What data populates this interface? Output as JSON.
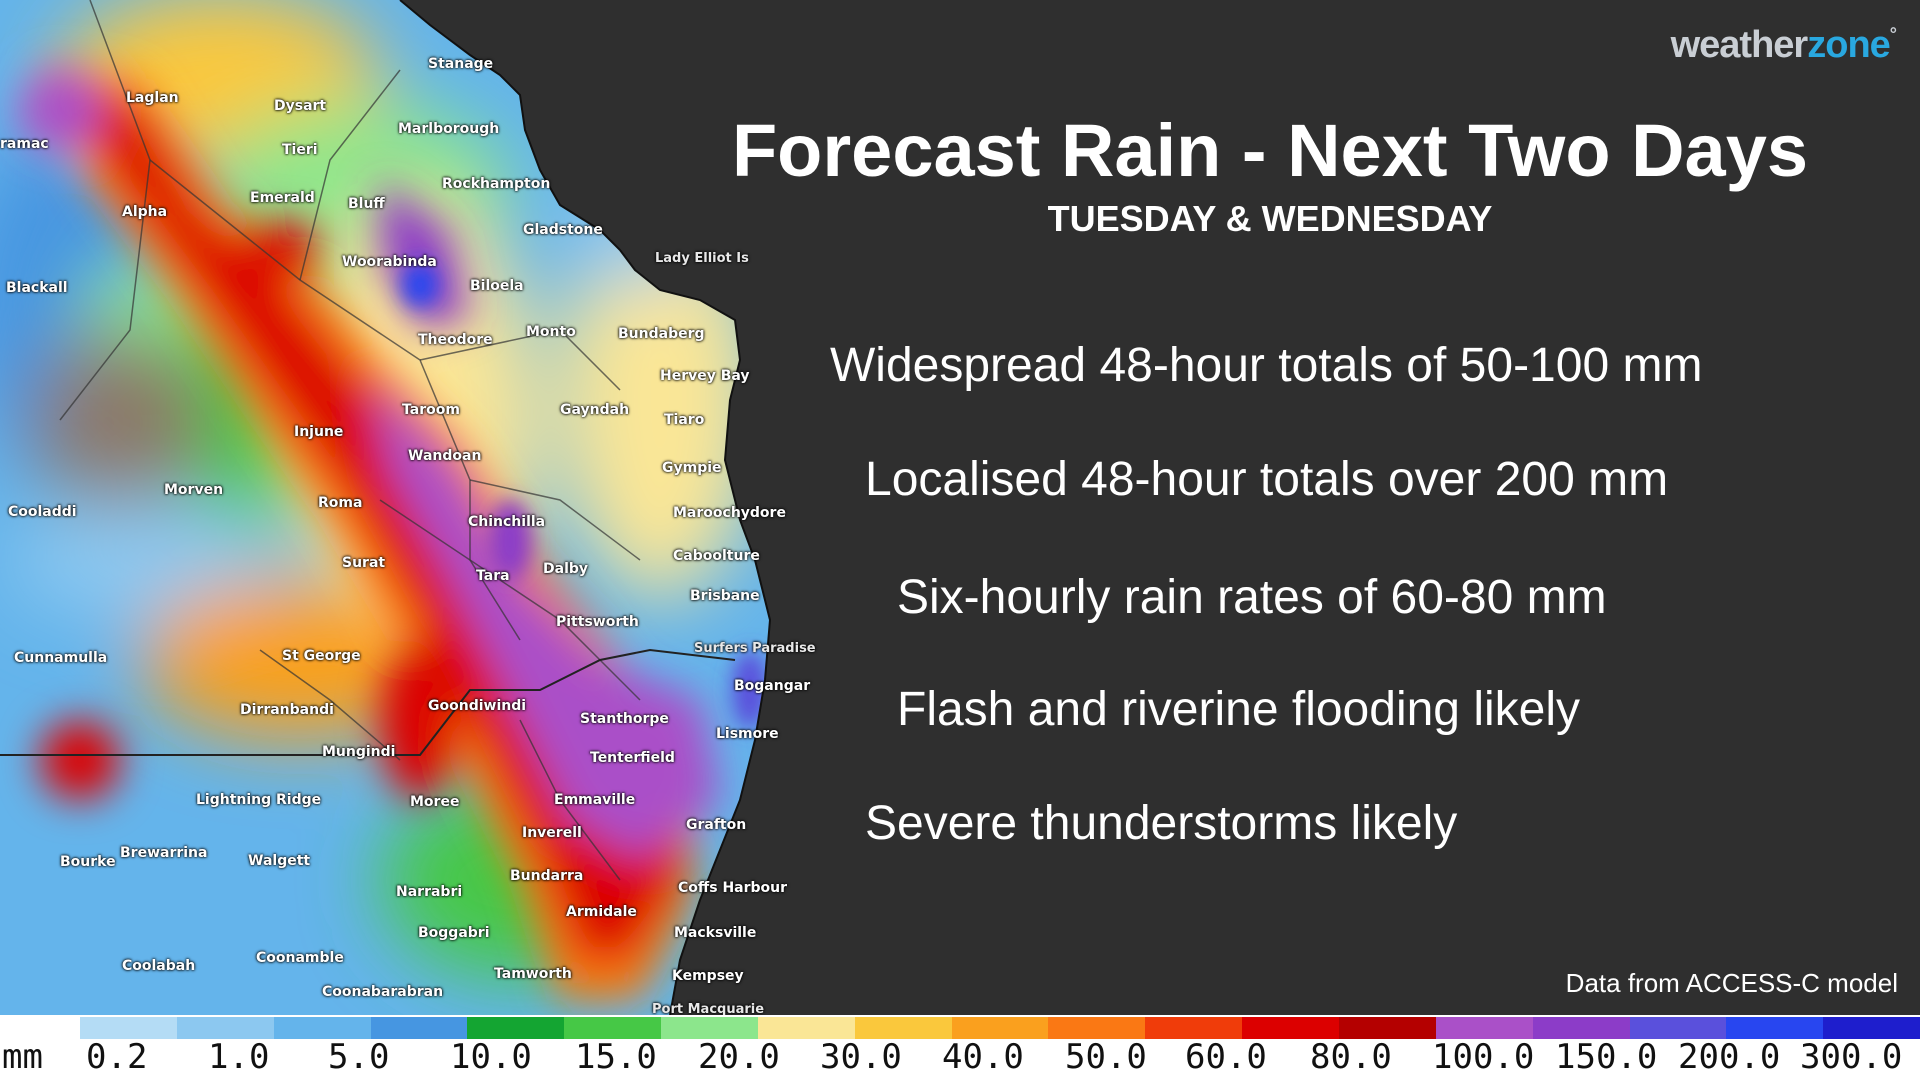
{
  "brand": {
    "logo_main": "weather",
    "logo_accent": "zone",
    "logo_mark": "°"
  },
  "title": "Forecast Rain - Next Two Days",
  "subtitle": "TUESDAY & WEDNESDAY",
  "points": [
    "Widespread 48-hour totals of 50-100 mm",
    "Localised 48-hour totals over 200 mm",
    "Six-hourly rain rates of 60-80 mm",
    "Flash and riverine flooding likely",
    "Severe thunderstorms likely"
  ],
  "credit": "Data from ACCESS-C model",
  "legend": {
    "unit": "mm",
    "colors": [
      "#b4dcf5",
      "#8cc8f0",
      "#64b4eb",
      "#4696e1",
      "#14a532",
      "#46c846",
      "#8ce68c",
      "#fae696",
      "#fac83c",
      "#faa01e",
      "#fa7814",
      "#f03c0a",
      "#dc0000",
      "#b40000",
      "#aa50c8",
      "#8c3cc8",
      "#5a50dc",
      "#2846f0",
      "#1e1ecd"
    ],
    "labels": [
      "0.2",
      "1.0",
      "5.0",
      "10.0",
      "15.0",
      "20.0",
      "30.0",
      "40.0",
      "50.0",
      "60.0",
      "80.0",
      "100.0",
      "150.0",
      "200.0",
      "300.0"
    ]
  },
  "map": {
    "places": [
      "Stanage",
      "Laglan",
      "Dysart",
      "Marlborough",
      "ramac",
      "Tieri",
      "Rockhampton",
      "Emerald",
      "Bluff",
      "Gladstone",
      "Alpha",
      "Lady Elliot Is",
      "Woorabinda",
      "Biloela",
      "Blackall",
      "Monto",
      "Bundaberg",
      "Theodore",
      "Hervey Bay",
      "Taroom",
      "Gayndah",
      "Tiaro",
      "Injune",
      "Wandoan",
      "Gympie",
      "Morven",
      "Roma",
      "Maroochydore",
      "Cooladdi",
      "Chinchilla",
      "Caboolture",
      "Surat",
      "Tara",
      "Dalby",
      "Brisbane",
      "Pittsworth",
      "Surfers Paradise",
      "Cunnamulla",
      "St George",
      "Bogangar",
      "Dirranbandi",
      "Goondiwindi",
      "Stanthorpe",
      "Lismore",
      "Mungindi",
      "Tenterfield",
      "Lightning Ridge",
      "Moree",
      "Emmaville",
      "Grafton",
      "Inverell",
      "Bourke",
      "Brewarrina",
      "Walgett",
      "Bundarra",
      "Coffs Harbour",
      "Narrabri",
      "Armidale",
      "Boggabri",
      "Macksville",
      "Coonamble",
      "Coolabah",
      "Tamworth",
      "Kempsey",
      "Coonabarabran",
      "Port Macquarie"
    ]
  }
}
